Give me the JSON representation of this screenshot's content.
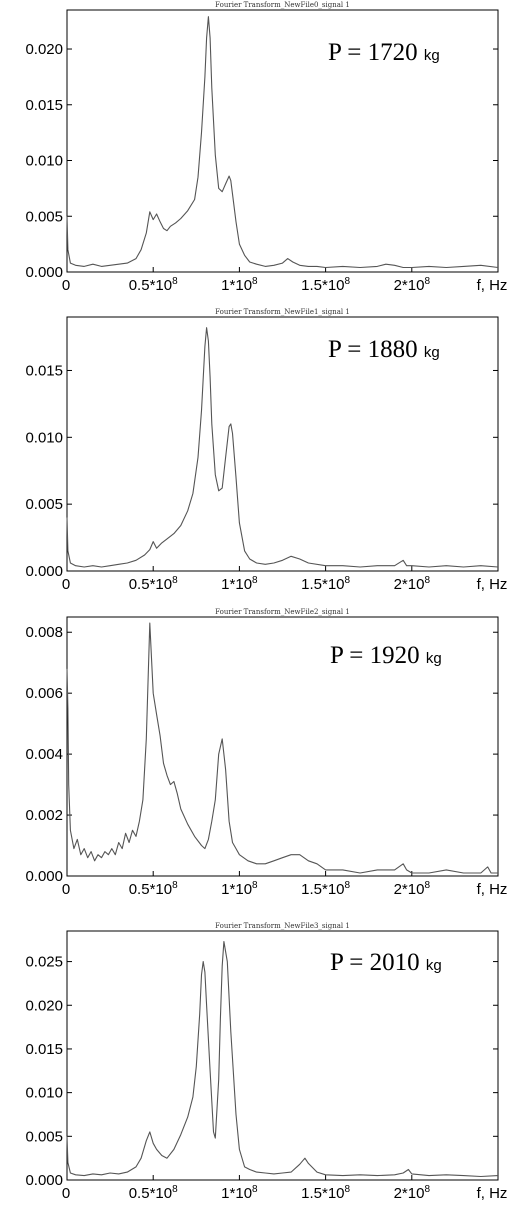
{
  "chart_data": [
    {
      "type": "line",
      "title": "Fourier Transform_NewFile0_signal 1",
      "annotation": {
        "label": "P = 1720",
        "unit": "kg"
      },
      "xlabel": "f, Hz",
      "xlim": [
        0,
        250000000
      ],
      "ylim": [
        0,
        0.0235
      ],
      "yticks": [
        {
          "value": 0.0,
          "label": "0.000"
        },
        {
          "value": 0.005,
          "label": "0.005"
        },
        {
          "value": 0.01,
          "label": "0.010"
        },
        {
          "value": 0.015,
          "label": "0.015"
        },
        {
          "value": 0.02,
          "label": "0.020"
        }
      ],
      "xticks": [
        {
          "value": 0,
          "mantissa": "0",
          "exp": ""
        },
        {
          "value": 50000000,
          "mantissa": "0.5*10",
          "exp": "8"
        },
        {
          "value": 100000000,
          "mantissa": "1*10",
          "exp": "8"
        },
        {
          "value": 150000000,
          "mantissa": "1.5*10",
          "exp": "8"
        },
        {
          "value": 200000000,
          "mantissa": "2*10",
          "exp": "8"
        }
      ],
      "series": [
        {
          "x": [
            0,
            500000,
            2000000,
            5000000,
            10000000,
            15000000,
            20000000,
            25000000,
            30000000,
            35000000,
            40000000,
            43000000,
            46000000,
            48000000,
            50000000,
            52000000,
            54000000,
            56000000,
            58000000,
            60000000,
            63000000,
            66000000,
            70000000,
            74000000,
            76000000,
            78000000,
            80000000,
            81000000,
            82000000,
            83000000,
            84000000,
            86000000,
            88000000,
            90000000,
            92000000,
            94000000,
            95000000,
            96000000,
            98000000,
            100000000,
            103000000,
            106000000,
            110000000,
            115000000,
            120000000,
            125000000,
            128000000,
            131000000,
            135000000,
            140000000,
            145000000,
            150000000,
            160000000,
            170000000,
            180000000,
            185000000,
            190000000,
            195000000,
            200000000,
            210000000,
            220000000,
            230000000,
            240000000,
            250000000
          ],
          "y": [
            0.005,
            0.002,
            0.0008,
            0.0006,
            0.0005,
            0.0007,
            0.0005,
            0.0006,
            0.0007,
            0.0008,
            0.0012,
            0.002,
            0.0035,
            0.0054,
            0.0047,
            0.0052,
            0.0045,
            0.0039,
            0.0037,
            0.0041,
            0.0044,
            0.0048,
            0.0055,
            0.0065,
            0.0085,
            0.0125,
            0.0175,
            0.021,
            0.0229,
            0.021,
            0.0165,
            0.0105,
            0.0075,
            0.0072,
            0.0079,
            0.0086,
            0.0082,
            0.007,
            0.0045,
            0.0025,
            0.0015,
            0.0009,
            0.0007,
            0.0005,
            0.0006,
            0.0008,
            0.0012,
            0.0009,
            0.0006,
            0.0005,
            0.0005,
            0.0004,
            0.0005,
            0.0004,
            0.0005,
            0.0007,
            0.0006,
            0.0004,
            0.0004,
            0.0005,
            0.0004,
            0.0005,
            0.0006,
            0.0004
          ]
        }
      ]
    },
    {
      "type": "line",
      "title": "Fourier Transform_NewFile1_signal 1",
      "annotation": {
        "label": "P = 1880",
        "unit": "kg"
      },
      "xlabel": "f, Hz",
      "xlim": [
        0,
        250000000
      ],
      "ylim": [
        0,
        0.019
      ],
      "yticks": [
        {
          "value": 0.0,
          "label": "0.000"
        },
        {
          "value": 0.005,
          "label": "0.005"
        },
        {
          "value": 0.01,
          "label": "0.010"
        },
        {
          "value": 0.015,
          "label": "0.015"
        }
      ],
      "xticks": [
        {
          "value": 0,
          "mantissa": "0",
          "exp": ""
        },
        {
          "value": 50000000,
          "mantissa": "0.5*10",
          "exp": "8"
        },
        {
          "value": 100000000,
          "mantissa": "1*10",
          "exp": "8"
        },
        {
          "value": 150000000,
          "mantissa": "1.5*10",
          "exp": "8"
        },
        {
          "value": 200000000,
          "mantissa": "2*10",
          "exp": "8"
        }
      ],
      "series": [
        {
          "x": [
            0,
            500000,
            2000000,
            5000000,
            10000000,
            15000000,
            20000000,
            25000000,
            30000000,
            35000000,
            40000000,
            45000000,
            48000000,
            50000000,
            52000000,
            55000000,
            58000000,
            62000000,
            66000000,
            70000000,
            73000000,
            76000000,
            78000000,
            80000000,
            81000000,
            82000000,
            83000000,
            84000000,
            86000000,
            88000000,
            90000000,
            92000000,
            94000000,
            95000000,
            96000000,
            98000000,
            100000000,
            103000000,
            106000000,
            110000000,
            115000000,
            120000000,
            125000000,
            130000000,
            135000000,
            140000000,
            150000000,
            160000000,
            170000000,
            180000000,
            190000000,
            195000000,
            197000000,
            200000000,
            210000000,
            220000000,
            230000000,
            240000000,
            250000000
          ],
          "y": [
            0.004,
            0.0015,
            0.0006,
            0.0004,
            0.0003,
            0.0004,
            0.0003,
            0.0004,
            0.0005,
            0.0006,
            0.0008,
            0.0012,
            0.0016,
            0.0022,
            0.0017,
            0.0021,
            0.0024,
            0.0028,
            0.0034,
            0.0045,
            0.0058,
            0.0085,
            0.012,
            0.0168,
            0.0182,
            0.0172,
            0.0145,
            0.011,
            0.0072,
            0.006,
            0.0062,
            0.0085,
            0.0108,
            0.011,
            0.0103,
            0.007,
            0.0036,
            0.0015,
            0.0009,
            0.0006,
            0.0005,
            0.0006,
            0.0008,
            0.0011,
            0.0009,
            0.0006,
            0.0004,
            0.0004,
            0.0003,
            0.0004,
            0.0004,
            0.0008,
            0.0004,
            0.0004,
            0.0003,
            0.0004,
            0.0003,
            0.0004,
            0.0003
          ]
        }
      ]
    },
    {
      "type": "line",
      "title": "Fourier Transform_NewFile2_signal 1",
      "annotation": {
        "label": "P = 1920",
        "unit": "kg"
      },
      "xlabel": "f, Hz",
      "xlim": [
        0,
        250000000
      ],
      "ylim": [
        0,
        0.0085
      ],
      "yticks": [
        {
          "value": 0.0,
          "label": "0.000"
        },
        {
          "value": 0.002,
          "label": "0.002"
        },
        {
          "value": 0.004,
          "label": "0.004"
        },
        {
          "value": 0.006,
          "label": "0.006"
        },
        {
          "value": 0.008,
          "label": "0.008"
        }
      ],
      "xticks": [
        {
          "value": 0,
          "mantissa": "0",
          "exp": ""
        },
        {
          "value": 50000000,
          "mantissa": "0.5*10",
          "exp": "8"
        },
        {
          "value": 100000000,
          "mantissa": "1*10",
          "exp": "8"
        },
        {
          "value": 150000000,
          "mantissa": "1.5*10",
          "exp": "8"
        },
        {
          "value": 200000000,
          "mantissa": "2*10",
          "exp": "8"
        }
      ],
      "series": [
        {
          "x": [
            0,
            500000,
            1000000,
            2000000,
            4000000,
            6000000,
            8000000,
            10000000,
            12000000,
            14000000,
            16000000,
            18000000,
            20000000,
            22000000,
            24000000,
            26000000,
            28000000,
            30000000,
            32000000,
            34000000,
            36000000,
            38000000,
            40000000,
            42000000,
            44000000,
            46000000,
            48000000,
            50000000,
            52000000,
            54000000,
            56000000,
            58000000,
            60000000,
            62000000,
            64000000,
            66000000,
            70000000,
            74000000,
            78000000,
            80000000,
            82000000,
            84000000,
            86000000,
            88000000,
            90000000,
            92000000,
            94000000,
            96000000,
            98000000,
            100000000,
            105000000,
            110000000,
            115000000,
            120000000,
            125000000,
            130000000,
            135000000,
            140000000,
            145000000,
            150000000,
            160000000,
            170000000,
            180000000,
            190000000,
            195000000,
            197000000,
            200000000,
            210000000,
            220000000,
            230000000,
            240000000,
            244000000,
            246000000,
            250000000
          ],
          "y": [
            0.0068,
            0.0055,
            0.003,
            0.0015,
            0.0009,
            0.0012,
            0.0007,
            0.0009,
            0.0006,
            0.0008,
            0.0005,
            0.0007,
            0.0006,
            0.0008,
            0.0007,
            0.0009,
            0.0007,
            0.0011,
            0.0009,
            0.0014,
            0.0011,
            0.0015,
            0.0013,
            0.0018,
            0.0025,
            0.0045,
            0.0083,
            0.006,
            0.0053,
            0.0046,
            0.0037,
            0.0033,
            0.003,
            0.0031,
            0.0027,
            0.0022,
            0.0017,
            0.0013,
            0.001,
            0.0009,
            0.0012,
            0.0018,
            0.0025,
            0.004,
            0.0045,
            0.0035,
            0.0018,
            0.0011,
            0.0009,
            0.0007,
            0.0005,
            0.0004,
            0.0004,
            0.0005,
            0.0006,
            0.0007,
            0.0007,
            0.0005,
            0.0004,
            0.0002,
            0.0002,
            0.0001,
            0.0002,
            0.0002,
            0.0004,
            0.0002,
            0.0001,
            0.0001,
            0.0002,
            0.0001,
            0.0001,
            0.0003,
            0.0001,
            0.0001
          ]
        }
      ]
    },
    {
      "type": "line",
      "title": "Fourier Transform_NewFile3_signal 1",
      "annotation": {
        "label": "P = 2010",
        "unit": "kg"
      },
      "xlabel": "f, Hz",
      "xlim": [
        0,
        250000000
      ],
      "ylim": [
        0,
        0.0285
      ],
      "yticks": [
        {
          "value": 0.0,
          "label": "0.000"
        },
        {
          "value": 0.005,
          "label": "0.005"
        },
        {
          "value": 0.01,
          "label": "0.010"
        },
        {
          "value": 0.015,
          "label": "0.015"
        },
        {
          "value": 0.02,
          "label": "0.020"
        },
        {
          "value": 0.025,
          "label": "0.025"
        }
      ],
      "xticks": [
        {
          "value": 0,
          "mantissa": "0",
          "exp": ""
        },
        {
          "value": 50000000,
          "mantissa": "0.5*10",
          "exp": "8"
        },
        {
          "value": 100000000,
          "mantissa": "1*10",
          "exp": "8"
        },
        {
          "value": 150000000,
          "mantissa": "1.5*10",
          "exp": "8"
        },
        {
          "value": 200000000,
          "mantissa": "2*10",
          "exp": "8"
        }
      ],
      "series": [
        {
          "x": [
            0,
            500000,
            2000000,
            5000000,
            10000000,
            15000000,
            20000000,
            25000000,
            30000000,
            35000000,
            40000000,
            43000000,
            46000000,
            48000000,
            50000000,
            52000000,
            55000000,
            58000000,
            62000000,
            66000000,
            70000000,
            73000000,
            75000000,
            77000000,
            78000000,
            79000000,
            80000000,
            81000000,
            83000000,
            85000000,
            86000000,
            88000000,
            89000000,
            90000000,
            91000000,
            93000000,
            95000000,
            98000000,
            100000000,
            103000000,
            106000000,
            110000000,
            115000000,
            120000000,
            125000000,
            130000000,
            135000000,
            138000000,
            140000000,
            145000000,
            150000000,
            160000000,
            170000000,
            180000000,
            190000000,
            195000000,
            198000000,
            200000000,
            210000000,
            220000000,
            230000000,
            240000000,
            250000000
          ],
          "y": [
            0.005,
            0.002,
            0.0008,
            0.0006,
            0.0005,
            0.0007,
            0.0006,
            0.0008,
            0.0007,
            0.0009,
            0.0015,
            0.0025,
            0.0045,
            0.0055,
            0.0042,
            0.0035,
            0.0028,
            0.0025,
            0.0035,
            0.0052,
            0.0072,
            0.0095,
            0.013,
            0.019,
            0.0235,
            0.025,
            0.0238,
            0.02,
            0.0125,
            0.0055,
            0.0048,
            0.0115,
            0.0185,
            0.0245,
            0.0273,
            0.025,
            0.017,
            0.0075,
            0.0035,
            0.0015,
            0.0012,
            0.0009,
            0.0008,
            0.0007,
            0.0008,
            0.0009,
            0.0018,
            0.0025,
            0.0019,
            0.0009,
            0.0006,
            0.0005,
            0.0006,
            0.0005,
            0.0006,
            0.0008,
            0.0012,
            0.0007,
            0.0005,
            0.0006,
            0.0005,
            0.0004,
            0.0005
          ]
        }
      ]
    }
  ]
}
